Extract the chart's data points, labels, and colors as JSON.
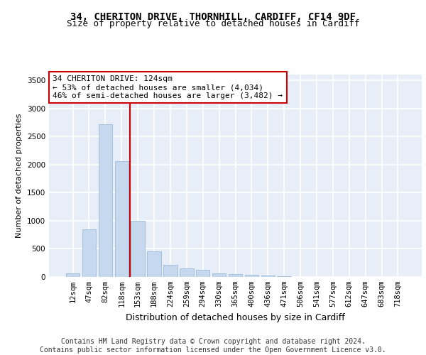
{
  "title_line1": "34, CHERITON DRIVE, THORNHILL, CARDIFF, CF14 9DF",
  "title_line2": "Size of property relative to detached houses in Cardiff",
  "xlabel": "Distribution of detached houses by size in Cardiff",
  "ylabel": "Number of detached properties",
  "categories": [
    "12sqm",
    "47sqm",
    "82sqm",
    "118sqm",
    "153sqm",
    "188sqm",
    "224sqm",
    "259sqm",
    "294sqm",
    "330sqm",
    "365sqm",
    "400sqm",
    "436sqm",
    "471sqm",
    "506sqm",
    "541sqm",
    "577sqm",
    "612sqm",
    "647sqm",
    "683sqm",
    "718sqm"
  ],
  "values": [
    60,
    850,
    2720,
    2060,
    1000,
    450,
    215,
    150,
    130,
    60,
    50,
    35,
    20,
    15,
    5,
    5,
    0,
    0,
    0,
    0,
    0
  ],
  "bar_color": "#c5d8ee",
  "bar_edge_color": "#8fb4d4",
  "background_color": "#e8eef8",
  "grid_color": "#ffffff",
  "vline_color": "#cc0000",
  "annotation_text": "34 CHERITON DRIVE: 124sqm\n← 53% of detached houses are smaller (4,034)\n46% of semi-detached houses are larger (3,482) →",
  "annotation_box_color": "#ffffff",
  "annotation_box_edge": "#cc0000",
  "ylim": [
    0,
    3600
  ],
  "yticks": [
    0,
    500,
    1000,
    1500,
    2000,
    2500,
    3000,
    3500
  ],
  "footer": "Contains HM Land Registry data © Crown copyright and database right 2024.\nContains public sector information licensed under the Open Government Licence v3.0.",
  "title_fontsize": 10,
  "subtitle_fontsize": 9,
  "footer_fontsize": 7,
  "tick_fontsize": 7.5,
  "ylabel_fontsize": 8,
  "xlabel_fontsize": 9
}
